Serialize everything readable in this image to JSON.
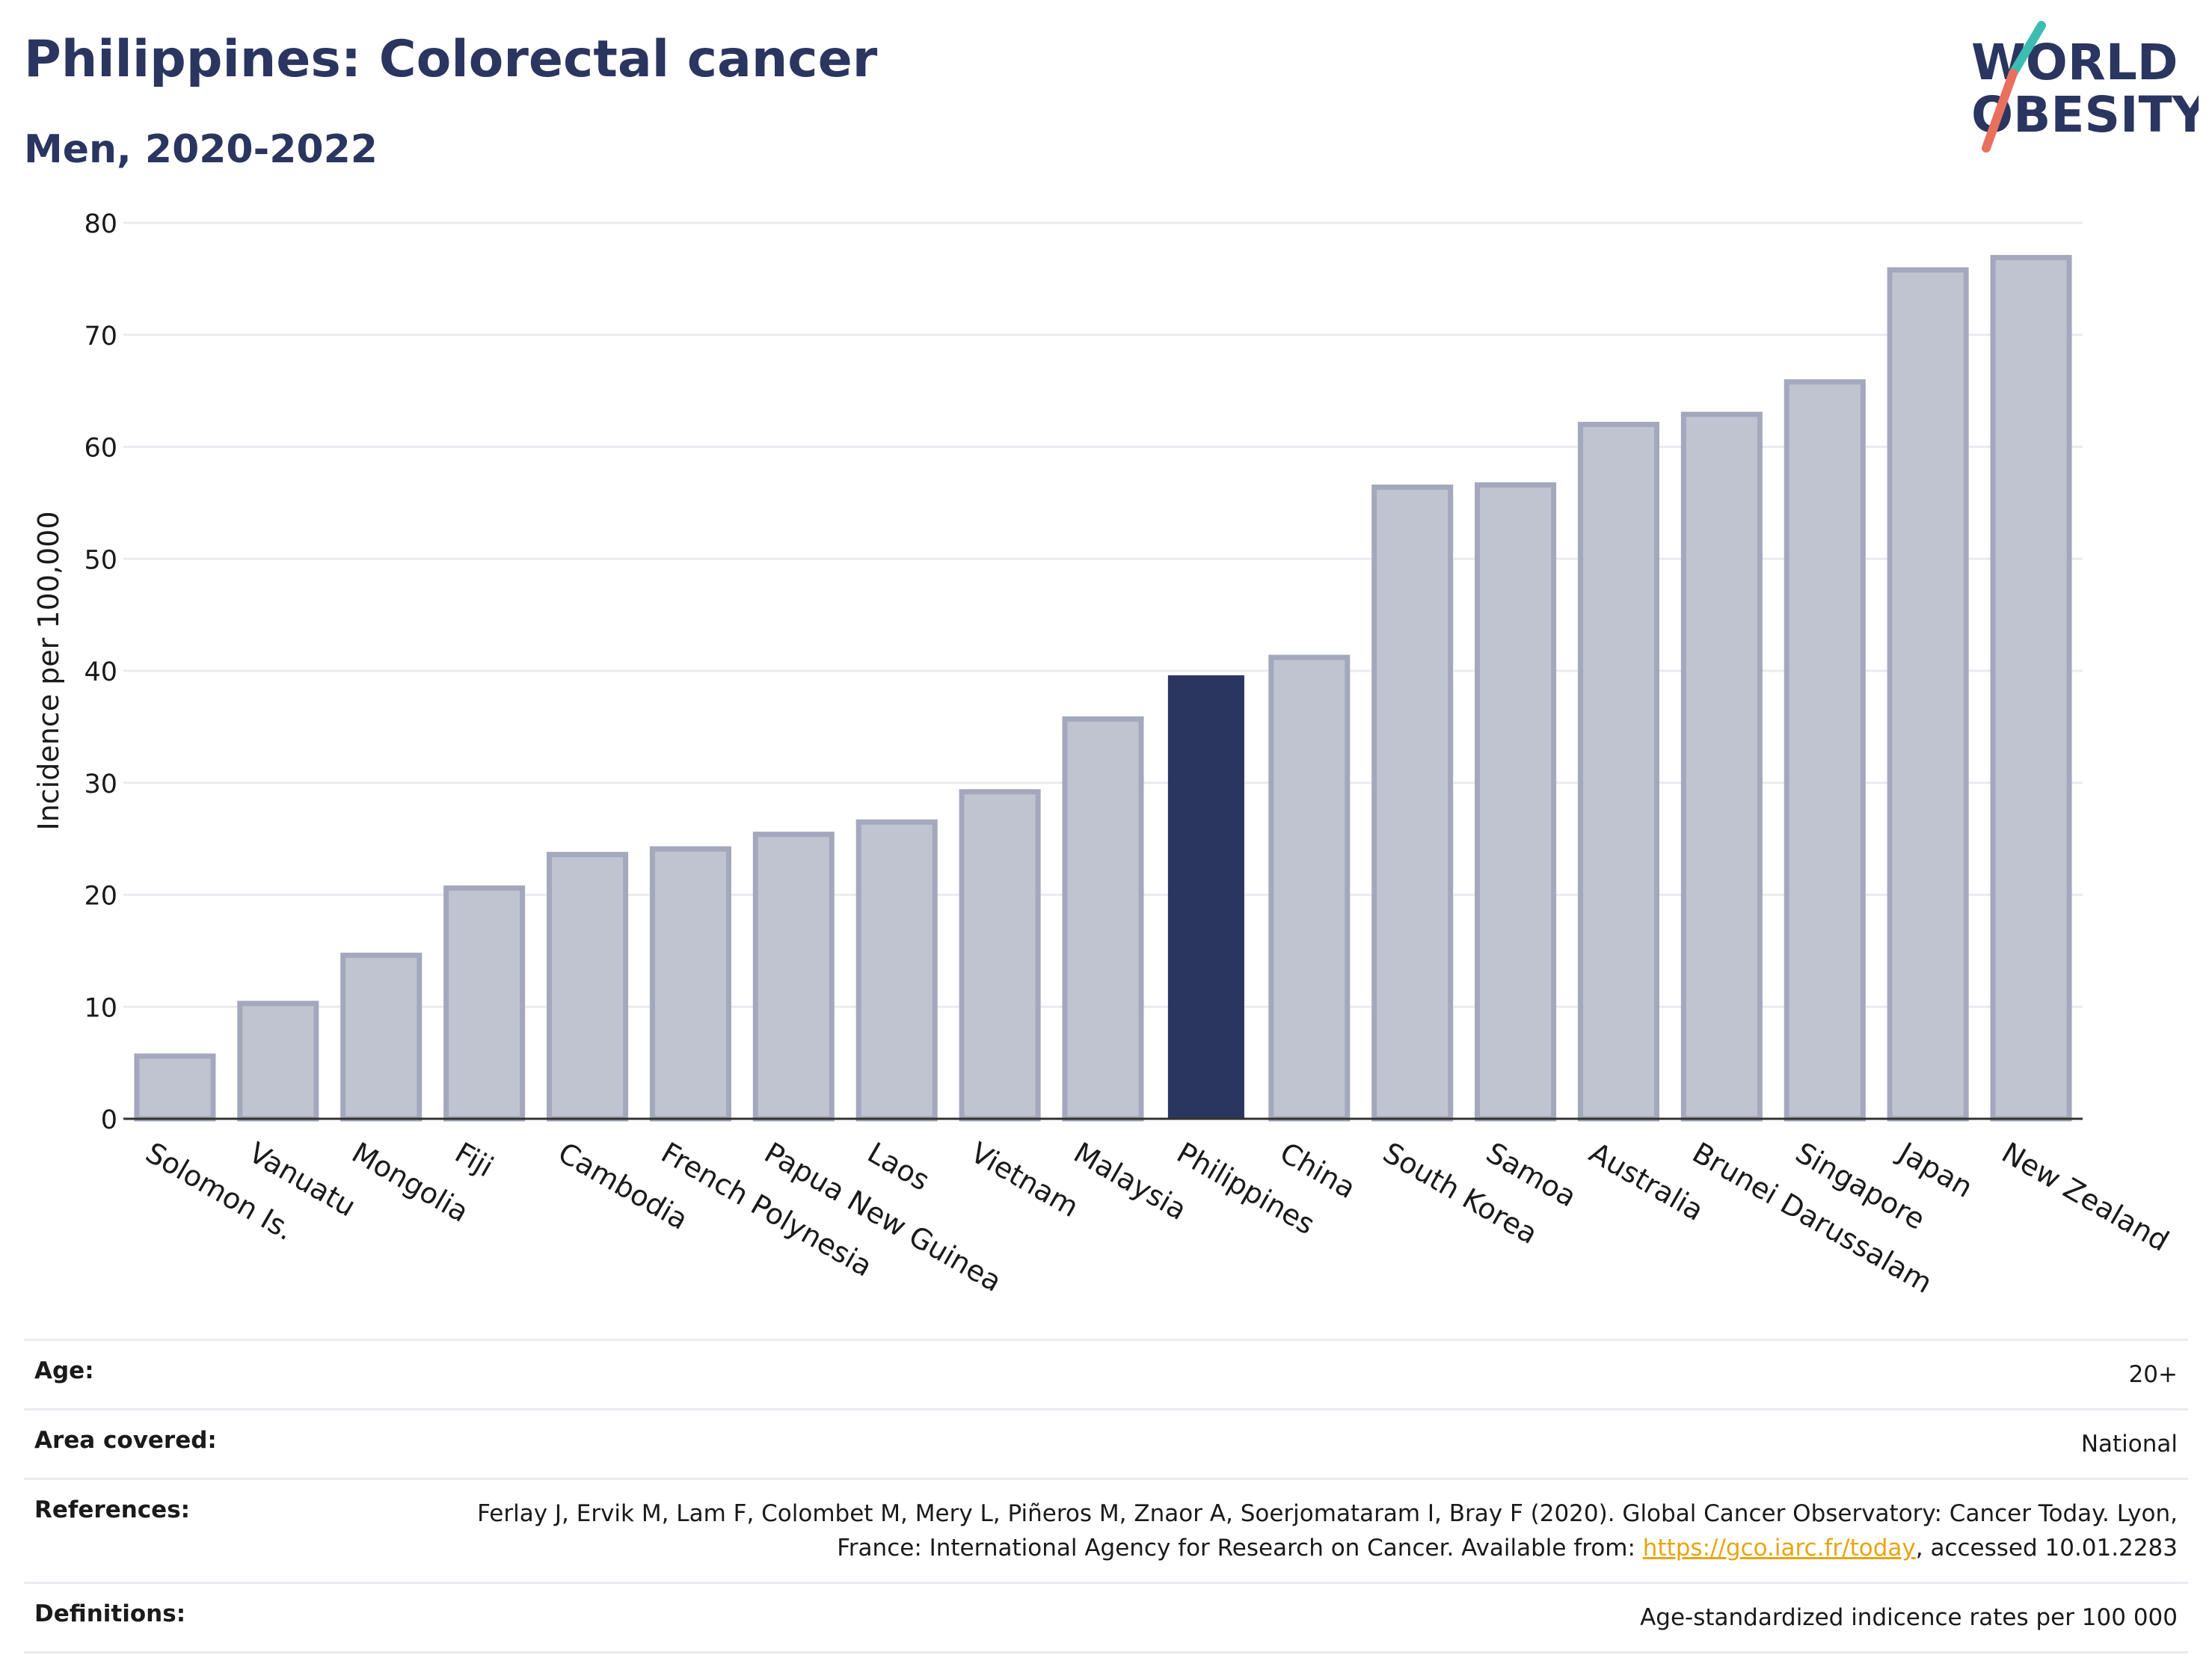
{
  "header": {
    "title": "Philippines: Colorectal cancer",
    "subtitle": "Men, 2020-2022"
  },
  "logo": {
    "line1": "WORLD",
    "line2": "OBESITY",
    "accent_colors": [
      "#e8705d",
      "#3dbdb2"
    ],
    "text_color": "#2a3560"
  },
  "colors": {
    "highlight": "#2a3560",
    "bar_fill": "#c0c3d0",
    "bar_stroke": "#a3a8bd",
    "grid": "#e9ebf0",
    "text": "#1a1a1a"
  },
  "chart_data": {
    "type": "bar",
    "categories": [
      "Solomon Is.",
      "Vanuatu",
      "Mongolia",
      "Fiji",
      "Cambodia",
      "French Polynesia",
      "Papua New Guinea",
      "Laos",
      "Vietnam",
      "Malaysia",
      "Philippines",
      "China",
      "South Korea",
      "Samoa",
      "Australia",
      "Brunei Darussalam",
      "Singapore",
      "Japan",
      "New Zealand"
    ],
    "values": [
      5.6,
      10.3,
      14.6,
      20.6,
      23.6,
      24.1,
      25.4,
      26.5,
      29.2,
      35.7,
      39.6,
      41.2,
      56.4,
      56.6,
      62.0,
      62.9,
      65.8,
      75.8,
      76.9
    ],
    "highlight": "Philippines",
    "ylabel": "Incidence per 100,000",
    "ylim": [
      0,
      80
    ],
    "yticks": [
      0,
      10,
      20,
      30,
      40,
      50,
      60,
      70,
      80
    ],
    "grid": true
  },
  "info": [
    {
      "label": "Age:",
      "value": "20+"
    },
    {
      "label": "Area covered:",
      "value": "National"
    },
    {
      "label": "References:",
      "value_before": "Ferlay J, Ervik M, Lam F, Colombet M, Mery L, Piñeros M, Znaor A, Soerjomataram I, Bray F (2020). Global Cancer Observatory: Cancer Today. Lyon, France: International Agency for Research on Cancer. Available from: ",
      "link": "https://gco.iarc.fr/today",
      "value_after": ", accessed 10.01.2283"
    },
    {
      "label": "Definitions:",
      "value": "Age-standardized indicence rates per 100 000"
    }
  ]
}
